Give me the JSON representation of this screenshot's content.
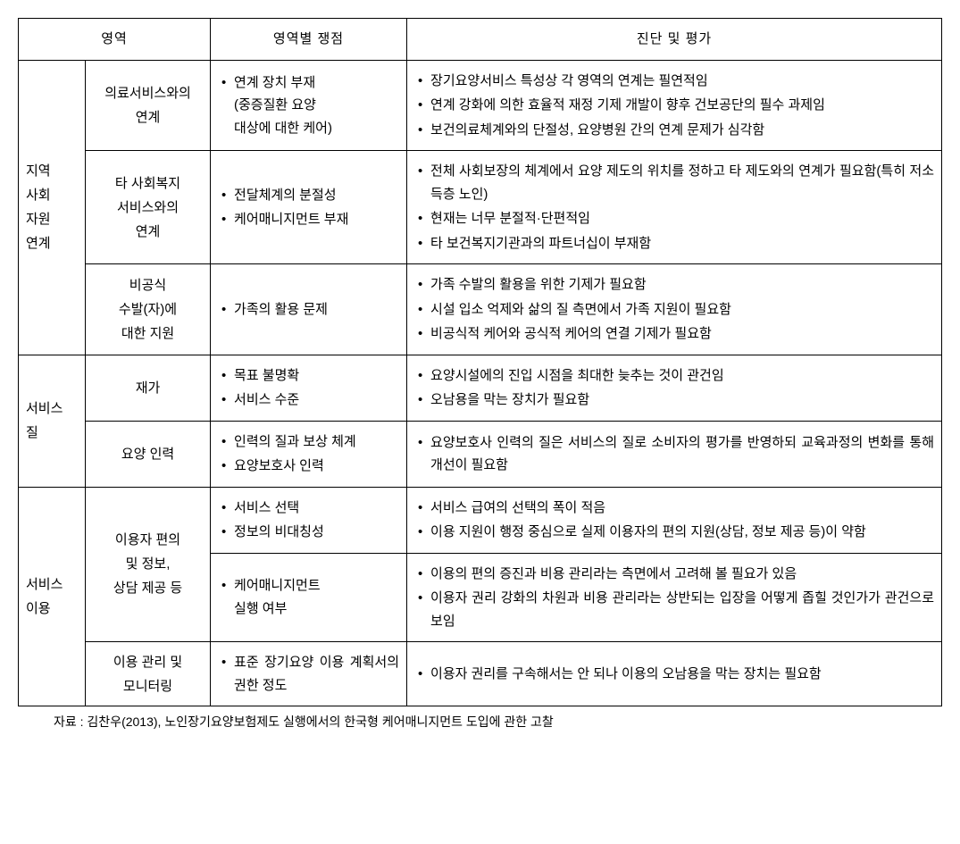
{
  "headers": {
    "area": "영역",
    "issues": "영역별 쟁점",
    "evaluation": "진단 및 평가"
  },
  "sections": [
    {
      "area": "지역\n사회\n자원\n연계",
      "rows": [
        {
          "sub": "의료서비스와의\n연계",
          "issues": [
            "연계 장치 부재\n(중증질환 요양\n대상에 대한 케어)"
          ],
          "eval": [
            "장기요양서비스 특성상 각 영역의 연계는 필연적임",
            "연계 강화에 의한 효율적 재정 기제 개발이 향후 건보공단의 필수 과제임",
            "보건의료체계와의 단절성, 요양병원 간의 연계 문제가 심각함"
          ]
        },
        {
          "sub": "타 사회복지\n서비스와의\n연계",
          "issues": [
            "전달체계의 분절성",
            "케어매니지먼트 부재"
          ],
          "eval": [
            "전체 사회보장의 체계에서 요양 제도의 위치를 정하고 타 제도와의 연계가 필요함(특히 저소득층 노인)",
            "현재는 너무 분절적·단편적임",
            "타 보건복지기관과의 파트너십이 부재함"
          ]
        },
        {
          "sub": "비공식\n수발(자)에\n대한 지원",
          "issues": [
            "가족의 활용 문제"
          ],
          "eval": [
            "가족 수발의 활용을 위한 기제가 필요함",
            "시설 입소 억제와 삶의 질 측면에서 가족 지원이 필요함",
            "비공식적 케어와 공식적 케어의 연결 기제가 필요함"
          ]
        }
      ]
    },
    {
      "area": "서비스\n질",
      "rows": [
        {
          "sub": "재가",
          "issues": [
            "목표 불명확",
            "서비스 수준"
          ],
          "eval": [
            "요양시설에의 진입 시점을 최대한 늦추는 것이 관건임",
            "오남용을 막는 장치가 필요함"
          ]
        },
        {
          "sub": "요양 인력",
          "issues": [
            "인력의 질과 보상 체계",
            "요양보호사 인력"
          ],
          "eval": [
            "요양보호사 인력의 질은 서비스의 질로 소비자의 평가를 반영하되 교육과정의 변화를 통해 개선이 필요함"
          ]
        }
      ]
    },
    {
      "area": "서비스\n이용",
      "rows": [
        {
          "sub": "이용자 편의\n및 정보,\n상담 제공 등",
          "sub_rowspan": 2,
          "issues": [
            "서비스 선택",
            "정보의 비대칭성"
          ],
          "eval": [
            "서비스 급여의 선택의 폭이 적음",
            "이용 지원이 행정 중심으로 실제 이용자의 편의 지원(상담, 정보 제공 등)이 약함"
          ]
        },
        {
          "sub": null,
          "issues": [
            "케어매니지먼트\n실행 여부"
          ],
          "eval": [
            "이용의 편의 증진과 비용 관리라는 측면에서 고려해 볼 필요가 있음",
            "이용자 권리 강화의 차원과 비용 관리라는 상반되는 입장을 어떻게 좁힐 것인가가 관건으로 보임"
          ]
        },
        {
          "sub": "이용 관리 및\n모니터링",
          "issues": [
            "표준 장기요양 이용 계획서의 권한 정도"
          ],
          "eval": [
            "이용자 권리를 구속해서는 안 되나 이용의 오남용을 막는 장치는 필요함"
          ]
        }
      ]
    }
  ],
  "source": "자료 : 김찬우(2013), 노인장기요양보험제도 실행에서의 한국형 케어매니지먼트 도입에 관한 고찰"
}
